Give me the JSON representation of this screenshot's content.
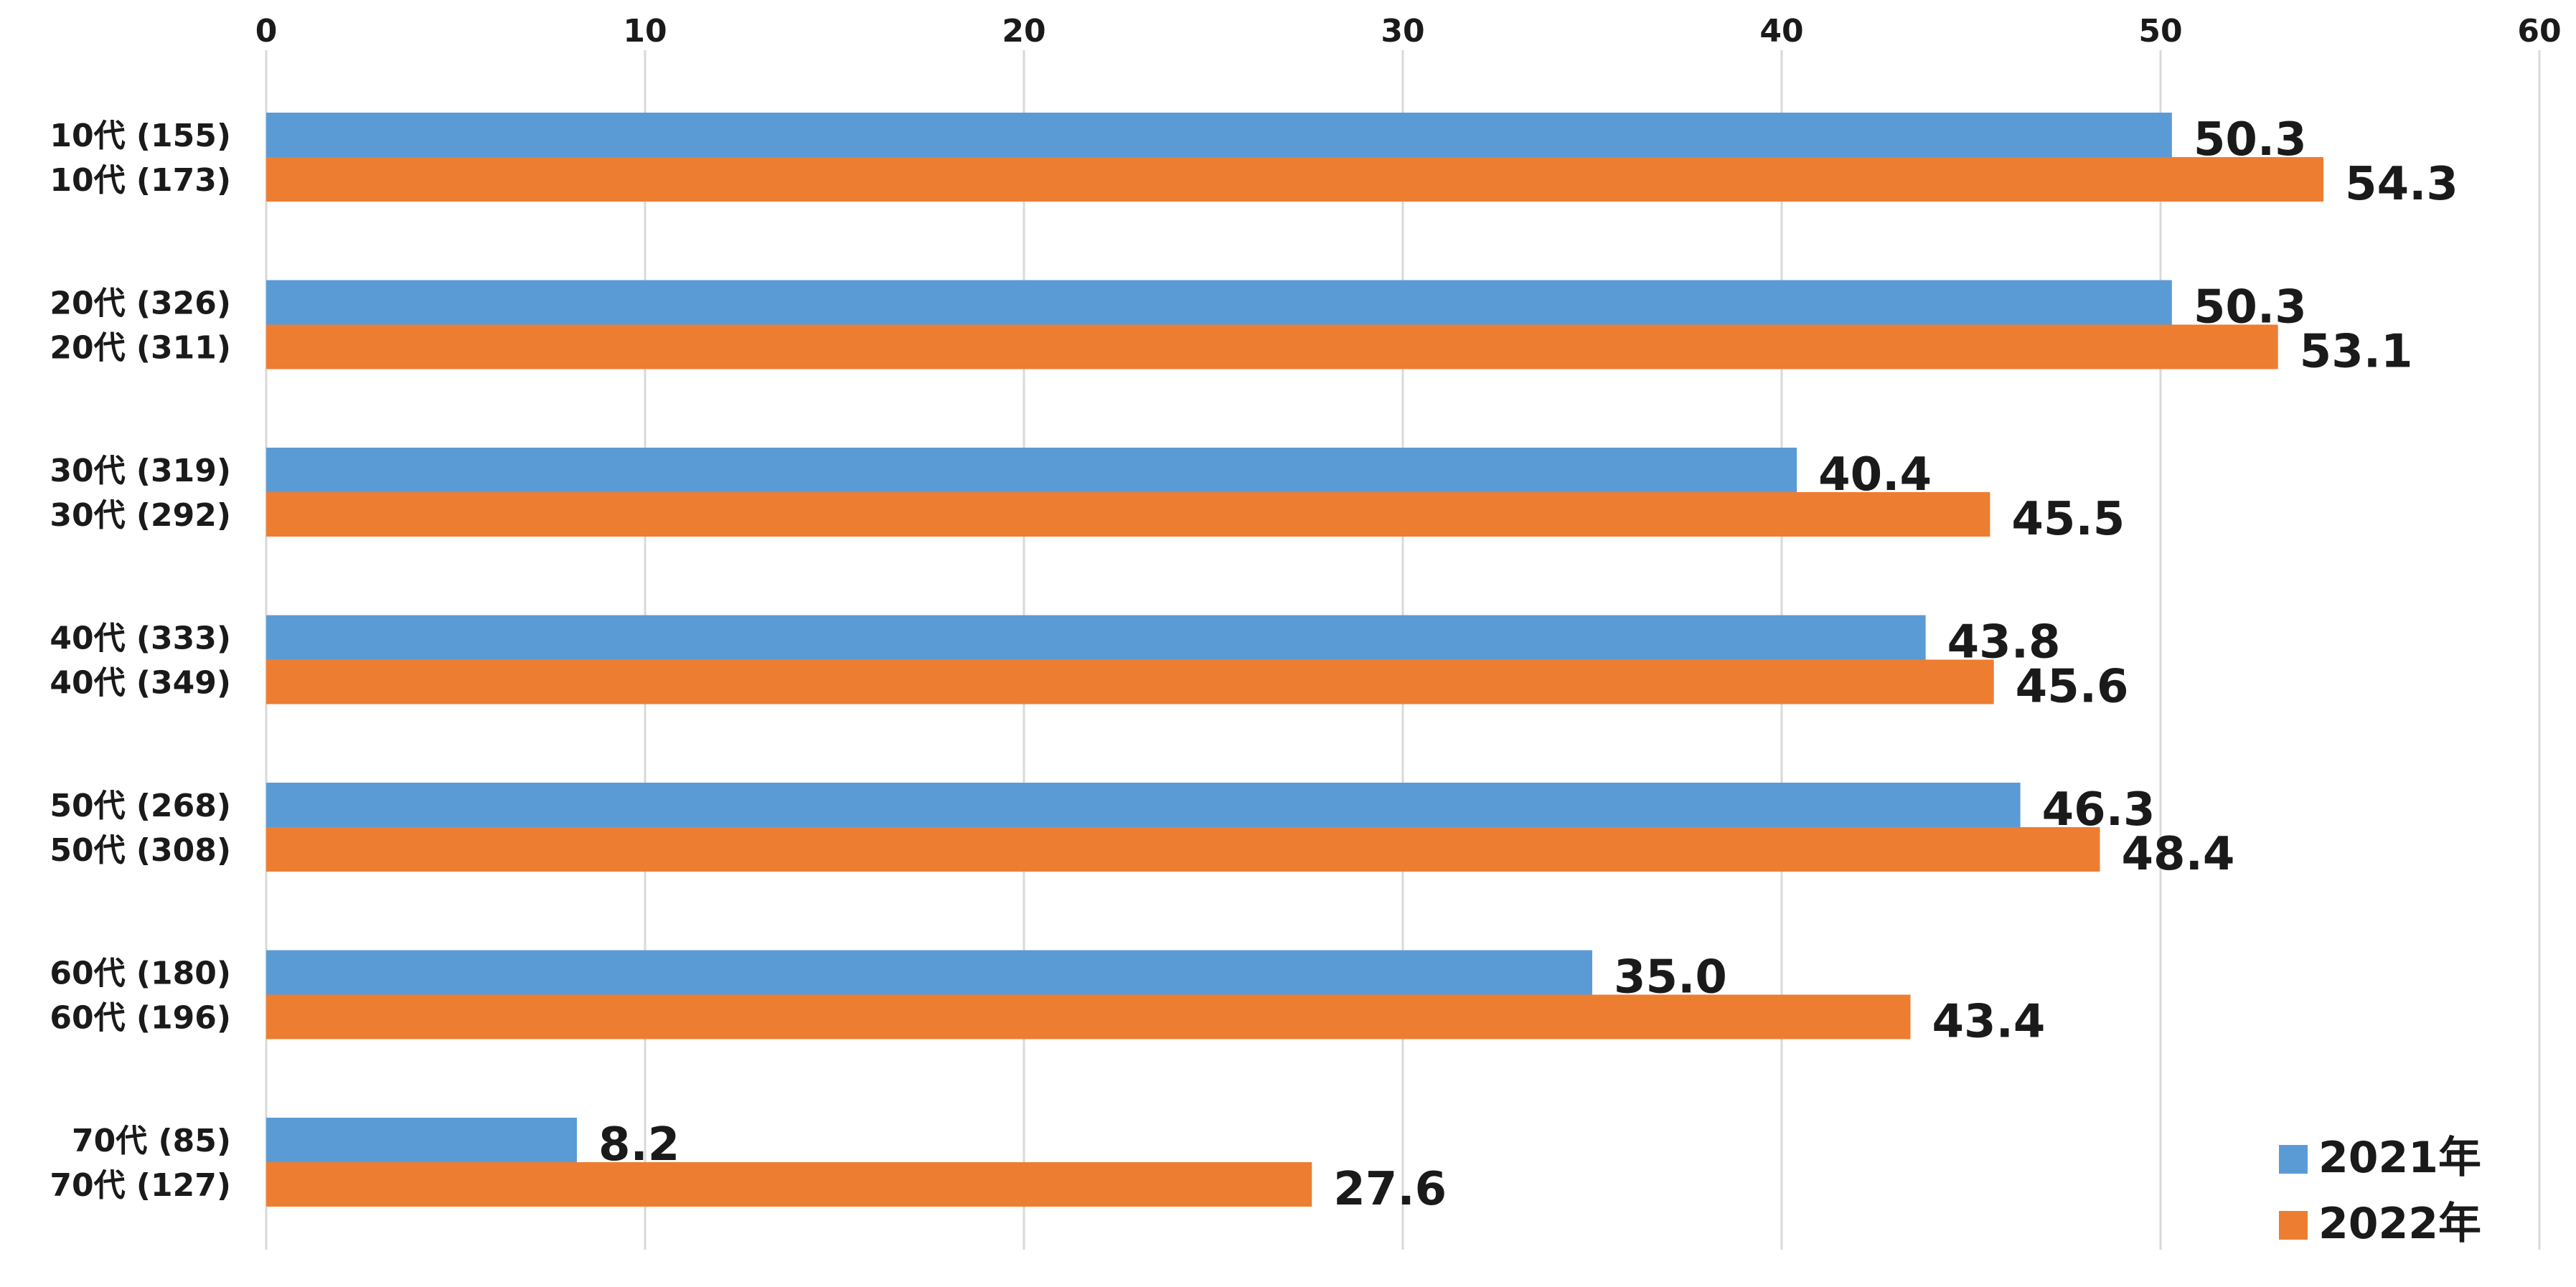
{
  "chart_data": {
    "type": "bar",
    "orientation": "horizontal",
    "x_axis_position": "top",
    "xlim": [
      0,
      60
    ],
    "x_ticks": [
      0,
      10,
      20,
      30,
      40,
      50,
      60
    ],
    "grid": "vertical",
    "legend_position": "bottom-right",
    "groups": [
      {
        "bars": [
          {
            "label": "10代 (155)",
            "value": 50.3,
            "data_label": "50.3",
            "series": 0
          },
          {
            "label": "10代 (173)",
            "value": 54.3,
            "data_label": "54.3",
            "series": 1
          }
        ]
      },
      {
        "bars": [
          {
            "label": "20代 (326)",
            "value": 50.3,
            "data_label": "50.3",
            "series": 0
          },
          {
            "label": "20代 (311)",
            "value": 53.1,
            "data_label": "53.1",
            "series": 1
          }
        ]
      },
      {
        "bars": [
          {
            "label": "30代 (319)",
            "value": 40.4,
            "data_label": "40.4",
            "series": 0
          },
          {
            "label": "30代 (292)",
            "value": 45.5,
            "data_label": "45.5",
            "series": 1
          }
        ]
      },
      {
        "bars": [
          {
            "label": "40代 (333)",
            "value": 43.8,
            "data_label": "43.8",
            "series": 0
          },
          {
            "label": "40代 (349)",
            "value": 45.6,
            "data_label": "45.6",
            "series": 1
          }
        ]
      },
      {
        "bars": [
          {
            "label": "50代 (268)",
            "value": 46.3,
            "data_label": "46.3",
            "series": 0
          },
          {
            "label": "50代 (308)",
            "value": 48.4,
            "data_label": "48.4",
            "series": 1
          }
        ]
      },
      {
        "bars": [
          {
            "label": "60代 (180)",
            "value": 35.0,
            "data_label": "35.0",
            "series": 0
          },
          {
            "label": "60代 (196)",
            "value": 43.4,
            "data_label": "43.4",
            "series": 1
          }
        ]
      },
      {
        "bars": [
          {
            "label": "70代 (85)",
            "value": 8.2,
            "data_label": "8.2",
            "series": 0
          },
          {
            "label": "70代 (127)",
            "value": 27.6,
            "data_label": "27.6",
            "series": 1
          }
        ]
      }
    ],
    "series": [
      {
        "name": "2021年",
        "color": "#5b9bd5"
      },
      {
        "name": "2022年",
        "color": "#ed7d31"
      }
    ]
  }
}
